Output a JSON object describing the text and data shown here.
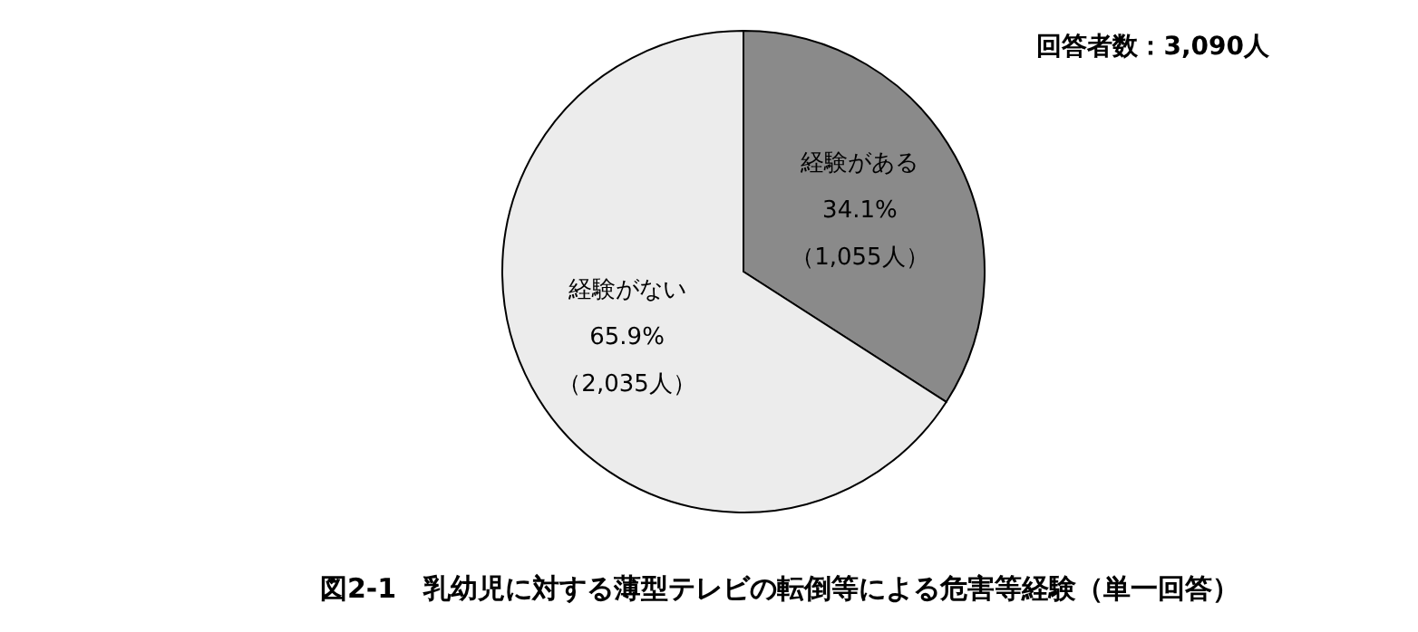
{
  "chart_data": {
    "type": "pie",
    "title": "図2-1　乳幼児に対する薄型テレビの転倒等による危害等経験（単一回答）",
    "categories": [
      "経験がある",
      "経験がない"
    ],
    "values": [
      34.1,
      65.9
    ],
    "colors": [
      "#8a8a8a",
      "#ececec"
    ],
    "value_labels": [
      "34.1%",
      "65.9%"
    ],
    "annotations": [
      {
        "text": "（1,055人）",
        "x": "経験がある"
      },
      {
        "text": "（2,035人）",
        "x": "経験がない"
      },
      "回答者数：3,090人"
    ]
  }
}
